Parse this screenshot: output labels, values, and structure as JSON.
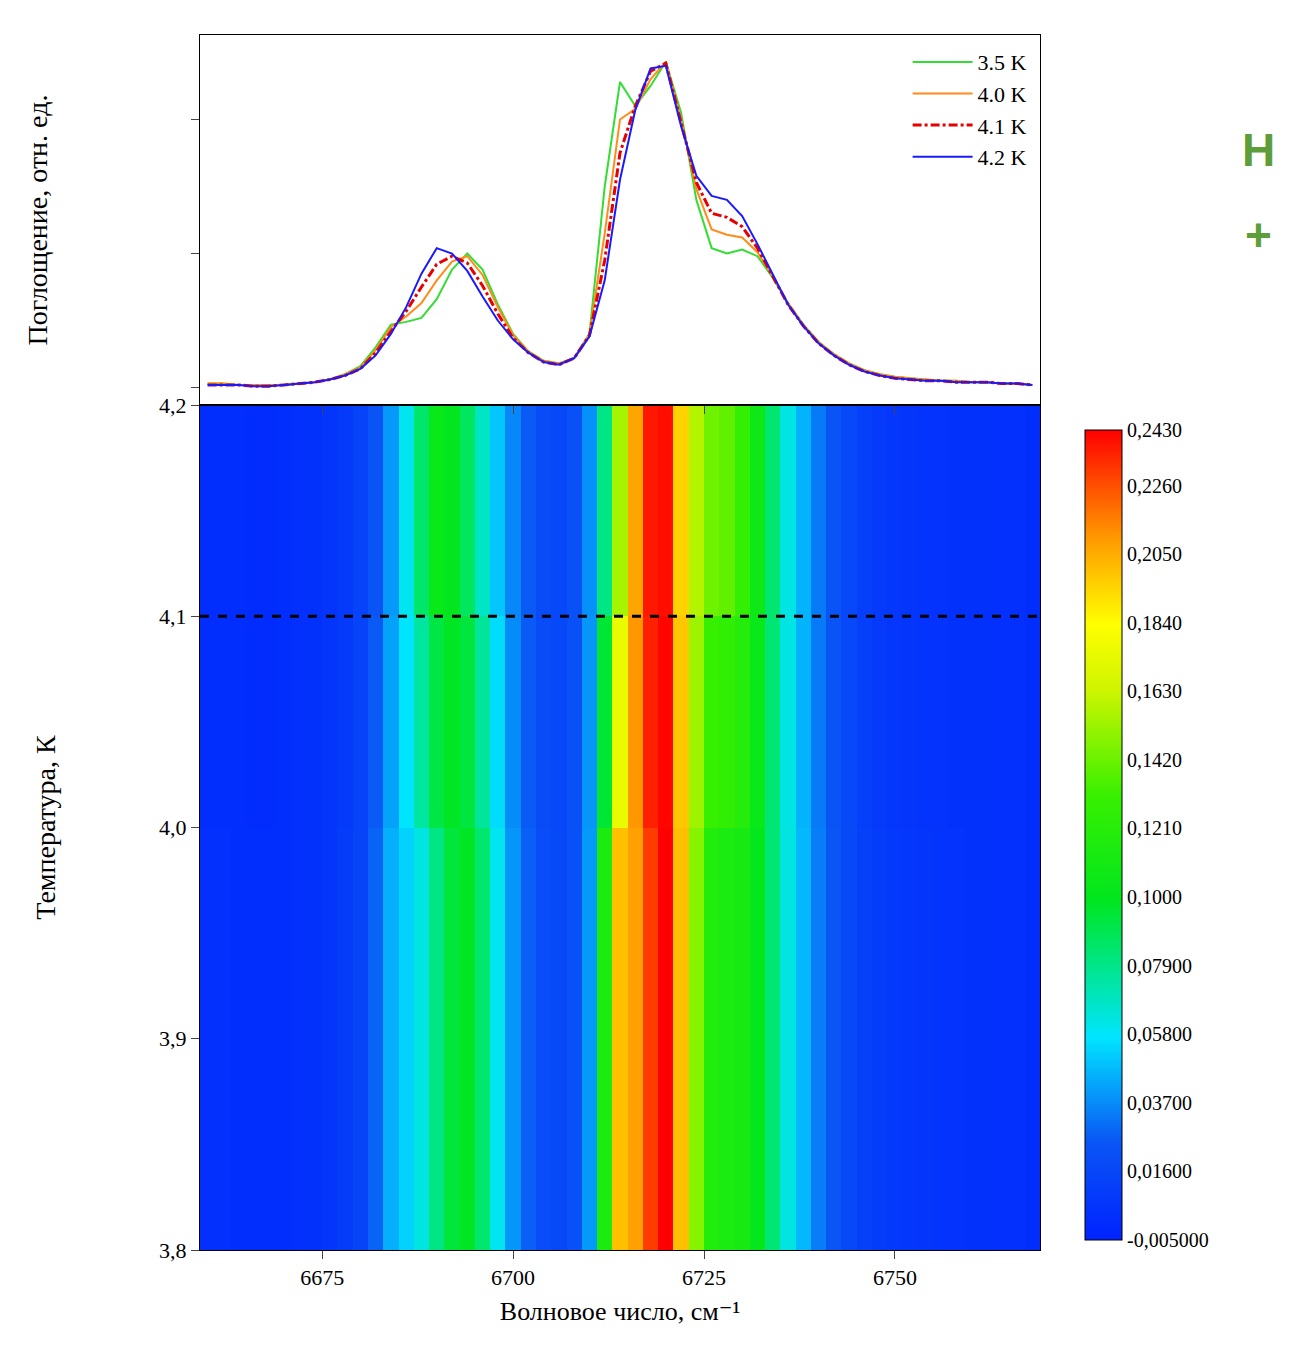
{
  "chart_data": [
    {
      "type": "line",
      "y_label": "Поглощение, отн. ед.",
      "tick_labels": false,
      "legend": "top right",
      "xlim": [
        6659,
        6769
      ],
      "xticks": [
        6675,
        6700,
        6725,
        6750
      ],
      "ylim": [
        -0.013,
        0.263
      ],
      "yticks": [
        0,
        0.1,
        0.2
      ],
      "annotations": [
        "Н",
        "+"
      ],
      "x": [
        6660,
        6662,
        6664,
        6666,
        6668,
        6670,
        6672,
        6674,
        6676,
        6678,
        6680,
        6682,
        6684,
        6686,
        6688,
        6690,
        6692,
        6694,
        6696,
        6698,
        6700,
        6702,
        6704,
        6706,
        6708,
        6710,
        6712,
        6714,
        6716,
        6718,
        6720,
        6722,
        6724,
        6726,
        6728,
        6730,
        6732,
        6734,
        6736,
        6738,
        6740,
        6742,
        6744,
        6746,
        6748,
        6750,
        6752,
        6754,
        6756,
        6758,
        6760,
        6762,
        6764,
        6766,
        6768
      ],
      "series": [
        {
          "name": "3.5 K",
          "color": "#33dd33",
          "line_style": "solid",
          "values": [
            0.003,
            0.003,
            0.002,
            0.002,
            0.002,
            0.002,
            0.003,
            0.004,
            0.006,
            0.01,
            0.016,
            0.03,
            0.047,
            0.049,
            0.052,
            0.066,
            0.088,
            0.1,
            0.088,
            0.062,
            0.04,
            0.027,
            0.02,
            0.018,
            0.022,
            0.04,
            0.15,
            0.228,
            0.21,
            0.225,
            0.243,
            0.205,
            0.14,
            0.104,
            0.1,
            0.103,
            0.098,
            0.082,
            0.063,
            0.047,
            0.034,
            0.025,
            0.018,
            0.013,
            0.01,
            0.008,
            0.007,
            0.006,
            0.005,
            0.005,
            0.004,
            0.004,
            0.003,
            0.003,
            0.002
          ]
        },
        {
          "name": "4.0 K",
          "color": "#ff8c1a",
          "line_style": "solid",
          "values": [
            0.003,
            0.003,
            0.002,
            0.002,
            0.002,
            0.002,
            0.003,
            0.004,
            0.006,
            0.01,
            0.015,
            0.028,
            0.045,
            0.053,
            0.063,
            0.08,
            0.094,
            0.098,
            0.084,
            0.06,
            0.039,
            0.027,
            0.02,
            0.018,
            0.022,
            0.04,
            0.115,
            0.2,
            0.208,
            0.23,
            0.243,
            0.2,
            0.148,
            0.118,
            0.114,
            0.112,
            0.101,
            0.083,
            0.063,
            0.047,
            0.034,
            0.025,
            0.018,
            0.013,
            0.01,
            0.008,
            0.007,
            0.006,
            0.005,
            0.005,
            0.004,
            0.004,
            0.003,
            0.003,
            0.002
          ]
        },
        {
          "name": "4.1 K",
          "color": "#e60000",
          "line_style": "dashdot",
          "values": [
            0.002,
            0.002,
            0.002,
            0.001,
            0.001,
            0.002,
            0.003,
            0.004,
            0.006,
            0.009,
            0.014,
            0.026,
            0.042,
            0.057,
            0.075,
            0.092,
            0.098,
            0.093,
            0.076,
            0.055,
            0.037,
            0.026,
            0.019,
            0.017,
            0.022,
            0.039,
            0.095,
            0.175,
            0.21,
            0.236,
            0.242,
            0.198,
            0.153,
            0.13,
            0.127,
            0.12,
            0.104,
            0.083,
            0.062,
            0.046,
            0.033,
            0.024,
            0.017,
            0.012,
            0.009,
            0.007,
            0.006,
            0.005,
            0.005,
            0.004,
            0.004,
            0.004,
            0.003,
            0.003,
            0.002
          ]
        },
        {
          "name": "4.2 K",
          "color": "#1a1aff",
          "line_style": "solid",
          "values": [
            0.002,
            0.002,
            0.002,
            0.001,
            0.001,
            0.002,
            0.003,
            0.004,
            0.006,
            0.009,
            0.014,
            0.024,
            0.04,
            0.06,
            0.085,
            0.104,
            0.1,
            0.087,
            0.068,
            0.05,
            0.036,
            0.026,
            0.019,
            0.017,
            0.022,
            0.038,
            0.08,
            0.155,
            0.207,
            0.238,
            0.24,
            0.195,
            0.158,
            0.143,
            0.14,
            0.128,
            0.107,
            0.084,
            0.062,
            0.046,
            0.033,
            0.024,
            0.017,
            0.012,
            0.009,
            0.007,
            0.006,
            0.005,
            0.005,
            0.004,
            0.004,
            0.004,
            0.003,
            0.003,
            0.002
          ]
        }
      ]
    },
    {
      "type": "heatmap",
      "x_label": "Волновое число, см⁻¹",
      "y_label": "Температура, К",
      "xlim": [
        6659,
        6769
      ],
      "xticks": [
        6675,
        6700,
        6725,
        6750
      ],
      "ylim": [
        3.8,
        4.2
      ],
      "yticks": [
        {
          "value": 3.8,
          "label": "3,8"
        },
        {
          "value": 3.9,
          "label": "3,9"
        },
        {
          "value": 4.0,
          "label": "4,0"
        },
        {
          "value": 4.1,
          "label": "4,1"
        },
        {
          "value": 4.2,
          "label": "4,2"
        }
      ],
      "hlines": [
        {
          "value": 4.1,
          "line_style": "dash",
          "color": "#000000"
        }
      ],
      "x": [
        6660,
        6662,
        6664,
        6666,
        6668,
        6670,
        6672,
        6674,
        6676,
        6678,
        6680,
        6682,
        6684,
        6686,
        6688,
        6690,
        6692,
        6694,
        6696,
        6698,
        6700,
        6702,
        6704,
        6706,
        6708,
        6710,
        6712,
        6714,
        6716,
        6718,
        6720,
        6722,
        6724,
        6726,
        6728,
        6730,
        6732,
        6734,
        6736,
        6738,
        6740,
        6742,
        6744,
        6746,
        6748,
        6750,
        6752,
        6754,
        6756,
        6758,
        6760,
        6762,
        6764,
        6766,
        6768
      ],
      "y_edges": [
        3.8,
        4.0,
        4.1,
        4.2
      ],
      "z": [
        [
          0.003,
          0.003,
          0.002,
          0.002,
          0.002,
          0.002,
          0.003,
          0.004,
          0.006,
          0.01,
          0.015,
          0.028,
          0.045,
          0.053,
          0.063,
          0.08,
          0.094,
          0.098,
          0.084,
          0.06,
          0.039,
          0.027,
          0.02,
          0.018,
          0.022,
          0.04,
          0.115,
          0.2,
          0.208,
          0.23,
          0.243,
          0.2,
          0.148,
          0.118,
          0.114,
          0.112,
          0.101,
          0.083,
          0.063,
          0.047,
          0.034,
          0.025,
          0.018,
          0.013,
          0.01,
          0.008,
          0.007,
          0.006,
          0.005,
          0.005,
          0.004,
          0.004,
          0.003,
          0.003,
          0.002
        ],
        [
          0.002,
          0.002,
          0.002,
          0.001,
          0.001,
          0.002,
          0.003,
          0.004,
          0.006,
          0.009,
          0.014,
          0.026,
          0.042,
          0.057,
          0.075,
          0.092,
          0.098,
          0.093,
          0.076,
          0.055,
          0.037,
          0.026,
          0.019,
          0.017,
          0.022,
          0.039,
          0.095,
          0.175,
          0.21,
          0.236,
          0.242,
          0.198,
          0.153,
          0.13,
          0.127,
          0.12,
          0.104,
          0.083,
          0.062,
          0.046,
          0.033,
          0.024,
          0.017,
          0.012,
          0.009,
          0.007,
          0.006,
          0.005,
          0.005,
          0.004,
          0.004,
          0.004,
          0.003,
          0.003,
          0.002
        ],
        [
          0.002,
          0.002,
          0.002,
          0.001,
          0.001,
          0.002,
          0.003,
          0.004,
          0.006,
          0.009,
          0.014,
          0.024,
          0.04,
          0.06,
          0.085,
          0.104,
          0.1,
          0.087,
          0.068,
          0.05,
          0.036,
          0.026,
          0.019,
          0.017,
          0.022,
          0.038,
          0.08,
          0.155,
          0.207,
          0.238,
          0.24,
          0.195,
          0.158,
          0.143,
          0.14,
          0.128,
          0.107,
          0.084,
          0.062,
          0.046,
          0.033,
          0.024,
          0.017,
          0.012,
          0.009,
          0.007,
          0.006,
          0.005,
          0.005,
          0.004,
          0.004,
          0.004,
          0.003,
          0.003,
          0.002
        ]
      ],
      "zlim": [
        -0.005,
        0.243
      ],
      "zticks": [
        {
          "value": -0.005,
          "label": "-0,005000"
        },
        {
          "value": 0.016,
          "label": "0,01600"
        },
        {
          "value": 0.037,
          "label": "0,03700"
        },
        {
          "value": 0.058,
          "label": "0,05800"
        },
        {
          "value": 0.079,
          "label": "0,07900"
        },
        {
          "value": 0.1,
          "label": "0,1000"
        },
        {
          "value": 0.121,
          "label": "0,1210"
        },
        {
          "value": 0.142,
          "label": "0,1420"
        },
        {
          "value": 0.163,
          "label": "0,1630"
        },
        {
          "value": 0.184,
          "label": "0,1840"
        },
        {
          "value": 0.205,
          "label": "0,2050"
        },
        {
          "value": 0.226,
          "label": "0,2260"
        },
        {
          "value": 0.243,
          "label": "0,2430"
        }
      ]
    }
  ]
}
